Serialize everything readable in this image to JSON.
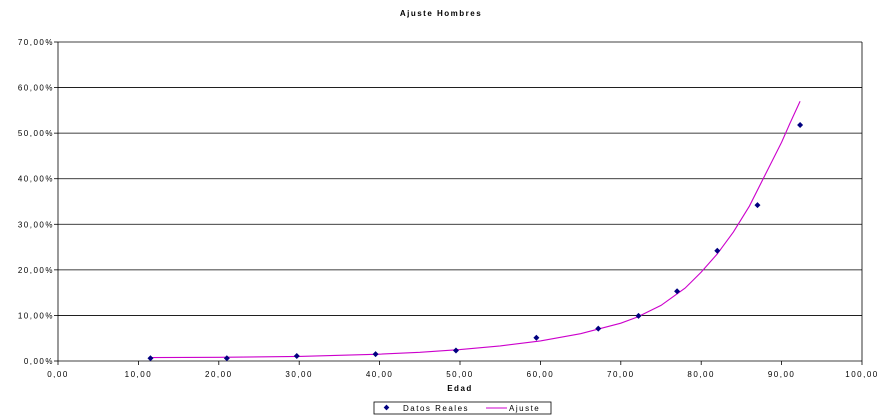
{
  "chart_data": {
    "type": "scatter",
    "title": "Ajuste Hombres",
    "xlabel": "Edad",
    "ylabel": "",
    "xlim": [
      0,
      100
    ],
    "ylim": [
      0,
      0.7
    ],
    "x_ticks": [
      0,
      10,
      20,
      30,
      40,
      50,
      60,
      70,
      80,
      90,
      100
    ],
    "y_ticks": [
      0,
      0.1,
      0.2,
      0.3,
      0.4,
      0.5,
      0.6,
      0.7
    ],
    "x_tick_labels": [
      "0,00",
      "10,00",
      "20,00",
      "30,00",
      "40,00",
      "50,00",
      "60,00",
      "70,00",
      "80,00",
      "90,00",
      "100,00"
    ],
    "y_tick_labels": [
      "0,00%",
      "10,00%",
      "20,00%",
      "30,00%",
      "40,00%",
      "50,00%",
      "60,00%",
      "70,00%"
    ],
    "grid": "horizontal",
    "legend_position": "bottom",
    "series": [
      {
        "name": "Datos Reales",
        "kind": "points",
        "color": "#000080",
        "x": [
          11.5,
          21,
          29.7,
          39.5,
          49.5,
          59.5,
          67.2,
          72.2,
          77,
          82,
          87,
          92.3
        ],
        "y": [
          0.006,
          0.006,
          0.011,
          0.015,
          0.023,
          0.051,
          0.071,
          0.099,
          0.153,
          0.242,
          0.342,
          0.518
        ]
      },
      {
        "name": "Ajuste",
        "kind": "line",
        "color": "#CC00CC",
        "x": [
          11.5,
          20,
          30,
          40,
          45,
          50,
          55,
          60,
          65,
          70,
          72,
          75,
          78,
          80,
          82,
          84,
          86,
          88,
          90,
          91,
          92.3
        ],
        "y": [
          0.0075,
          0.008,
          0.01,
          0.015,
          0.019,
          0.025,
          0.033,
          0.044,
          0.06,
          0.083,
          0.096,
          0.122,
          0.16,
          0.195,
          0.235,
          0.283,
          0.34,
          0.41,
          0.48,
          0.52,
          0.57
        ]
      }
    ]
  }
}
